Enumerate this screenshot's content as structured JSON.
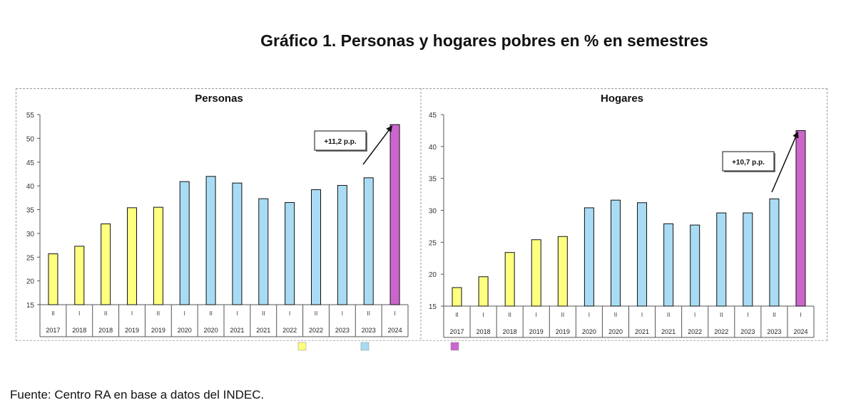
{
  "title": "Gráfico 1. Personas y hogares pobres en % en semestres",
  "source": "Fuente: Centro RA en base a datos del INDEC.",
  "colors": {
    "yellow": "#ffff80",
    "blue": "#a9dcf4",
    "magenta": "#cc66cc",
    "stroke": "#111111"
  },
  "chart_data": [
    {
      "type": "bar",
      "title": "Personas",
      "semesters": [
        "II",
        "I",
        "II",
        "I",
        "II",
        "I",
        "II",
        "I",
        "II",
        "I",
        "II",
        "I",
        "II",
        "I"
      ],
      "years": [
        "2017",
        "2018",
        "2018",
        "2019",
        "2019",
        "2020",
        "2020",
        "2021",
        "2021",
        "2022",
        "2022",
        "2023",
        "2023",
        "2024"
      ],
      "values": [
        25.7,
        27.3,
        32.0,
        35.4,
        35.5,
        40.9,
        42.0,
        40.6,
        37.3,
        36.5,
        39.2,
        40.1,
        41.7,
        52.9
      ],
      "color_groups": [
        "yellow",
        "yellow",
        "yellow",
        "yellow",
        "yellow",
        "blue",
        "blue",
        "blue",
        "blue",
        "blue",
        "blue",
        "blue",
        "blue",
        "magenta"
      ],
      "ylim": [
        15,
        55
      ],
      "yticks": [
        "15",
        "20",
        "25",
        "30",
        "35",
        "40",
        "45",
        "50",
        "55"
      ],
      "annotation": "+11,2 p.p."
    },
    {
      "type": "bar",
      "title": "Hogares",
      "semesters": [
        "II",
        "I",
        "II",
        "I",
        "II",
        "I",
        "II",
        "I",
        "II",
        "I",
        "II",
        "I",
        "II",
        "I"
      ],
      "years": [
        "2017",
        "2018",
        "2018",
        "2019",
        "2019",
        "2020",
        "2020",
        "2021",
        "2021",
        "2022",
        "2022",
        "2023",
        "2023",
        "2024"
      ],
      "values": [
        17.9,
        19.6,
        23.4,
        25.4,
        25.9,
        30.4,
        31.6,
        31.2,
        27.9,
        27.7,
        29.6,
        29.6,
        31.8,
        42.5
      ],
      "color_groups": [
        "yellow",
        "yellow",
        "yellow",
        "yellow",
        "yellow",
        "blue",
        "blue",
        "blue",
        "blue",
        "blue",
        "blue",
        "blue",
        "blue",
        "magenta"
      ],
      "ylim": [
        15,
        45
      ],
      "yticks": [
        "15",
        "20",
        "25",
        "30",
        "35",
        "40",
        "45"
      ],
      "annotation": "+10,7 p.p."
    }
  ],
  "legend": [
    {
      "color_group": "yellow",
      "label": ""
    },
    {
      "color_group": "blue",
      "label": ""
    },
    {
      "color_group": "magenta",
      "label": ""
    }
  ]
}
